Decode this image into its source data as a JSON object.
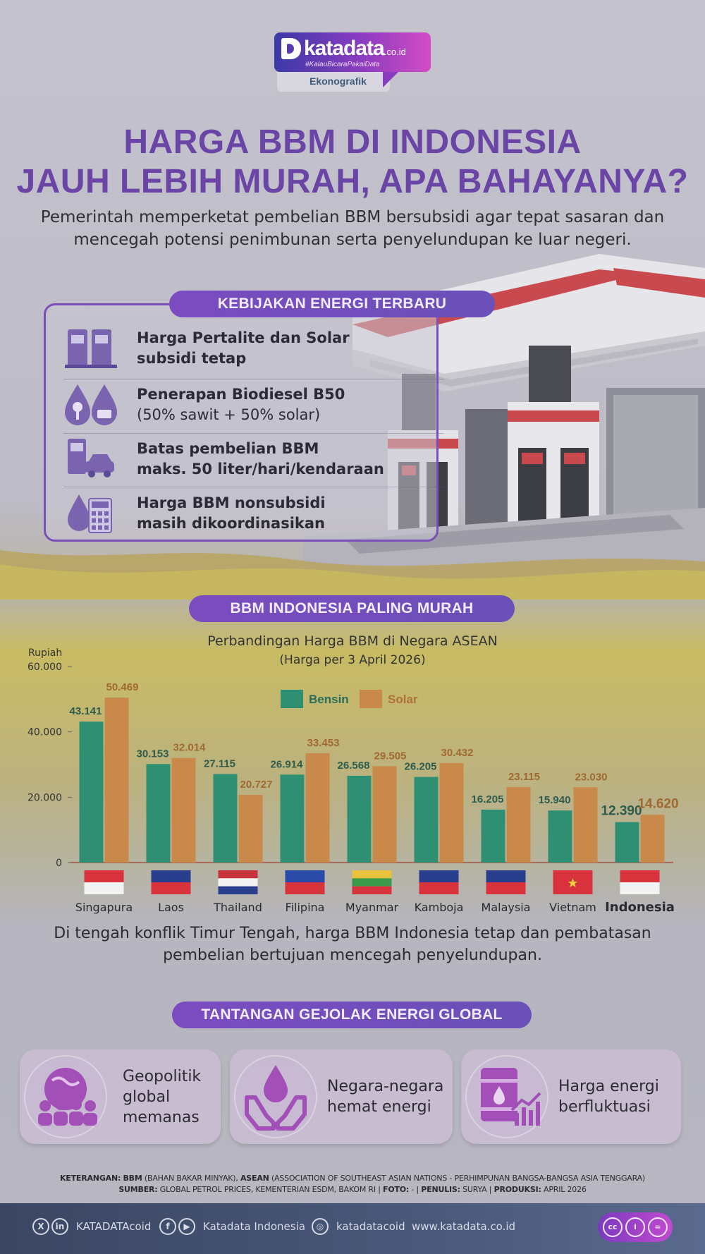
{
  "logo": {
    "name": "katadata",
    "suffix": ".co.id",
    "tagline": "#KalauBicaraPakaiData",
    "sub": "Ekonografik"
  },
  "title": {
    "line1": "HARGA BBM DI INDONESIA",
    "line2": "JAUH LEBIH MURAH, APA BAHAYANYA?"
  },
  "lead": {
    "line1": "Pemerintah memperketat pembelian BBM bersubsidi agar tepat sasaran dan",
    "line2": "mencegah potensi penimbunan serta penyelundupan ke luar negeri."
  },
  "policy": {
    "heading": "KEBIJAKAN ENERGI TERBARU",
    "items": [
      {
        "icon": "fuel-pumps-icon",
        "line1": "Harga Pertalite dan Solar",
        "line2": "subsidi tetap"
      },
      {
        "icon": "biodiesel-drops-icon",
        "line1": "Penerapan Biodiesel B50",
        "line2": "(50% sawit + 50% solar)"
      },
      {
        "icon": "pump-car-icon",
        "line1": "Batas pembelian BBM",
        "line2": "maks. 50 liter/hari/kendaraan"
      },
      {
        "icon": "drop-calculator-icon",
        "line1": "Harga BBM nonsubsidi",
        "line2": "masih dikoordinasikan"
      }
    ]
  },
  "chart_section": {
    "heading": "BBM INDONESIA PALING MURAH"
  },
  "chart_data": {
    "type": "bar",
    "title": "Perbandingan Harga BBM di Negara ASEAN",
    "subtitle": "(Harga per 3 April 2026)",
    "ylabel": "Rupiah",
    "ylim": [
      0,
      60000
    ],
    "yticks": [
      "0",
      "20.000",
      "40.000",
      "60.000"
    ],
    "legend_position": "top-center",
    "grid": false,
    "categories": [
      "Singapura",
      "Laos",
      "Thailand",
      "Filipina",
      "Myanmar",
      "Kamboja",
      "Malaysia",
      "Vietnam",
      "Indonesia"
    ],
    "series": [
      {
        "name": "Bensin",
        "color": "#2f8f73",
        "values": [
          43141,
          30153,
          27115,
          26914,
          26568,
          26205,
          16205,
          15940,
          12390
        ],
        "labels": [
          "43.141",
          "30.153",
          "27.115",
          "26.914",
          "26.568",
          "26.205",
          "16.205",
          "15.940",
          "12.390"
        ]
      },
      {
        "name": "Solar",
        "color": "#c9894a",
        "values": [
          50469,
          32014,
          20727,
          33453,
          29505,
          30432,
          23115,
          23030,
          14620
        ],
        "labels": [
          "50.469",
          "32.014",
          "20.727",
          "33.453",
          "29.505",
          "30.432",
          "23.115",
          "23.030",
          "14.620"
        ]
      }
    ]
  },
  "note": {
    "line1": "Di tengah konflik Timur Tengah, harga BBM Indonesia tetap dan pembatasan",
    "line2": "pembelian bertujuan mencegah penyelundupan."
  },
  "challenges": {
    "heading": "TANTANGAN GEJOLAK ENERGI GLOBAL",
    "items": [
      {
        "icon": "globe-people-icon",
        "lines": [
          "Geopolitik",
          "global",
          "memanas"
        ]
      },
      {
        "icon": "hands-drop-icon",
        "lines": [
          "Negara-negara",
          "hemat energi"
        ]
      },
      {
        "icon": "oil-barrel-chart-icon",
        "lines": [
          "Harga energi",
          "berfluktuasi"
        ]
      }
    ]
  },
  "footnote": {
    "k_label": "KETERANGAN:",
    "bbm": "BBM",
    "bbm_def": "(BAHAN BAKAR MINYAK),",
    "asean": "ASEAN",
    "asean_def": "(ASSOCIATION OF SOUTHEAST ASIAN NATIONS - PERHIMPUNAN BANGSA-BANGSA ASIA TENGGARA)",
    "s_label": "SUMBER:",
    "source": "GLOBAL PETROL PRICES, KEMENTERIAN ESDM, BAKOM RI |",
    "foto_label": "FOTO:",
    "foto": "- |",
    "writer_label": "PENULIS:",
    "writer": "SURYA |",
    "prod_label": "PRODUKSI:",
    "prod": "APRIL 2026"
  },
  "footer": {
    "handle": "KATADATAcoid",
    "fb_name": "Katadata Indonesia",
    "ig": "katadatacoid",
    "web": "www.katadata.co.id"
  },
  "colors": {
    "accent": "#6a45a6",
    "bensin": "#2f8f73",
    "solar": "#c9894a"
  }
}
